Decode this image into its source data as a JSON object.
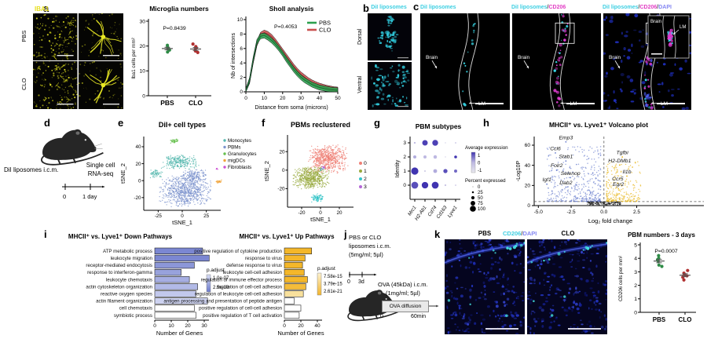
{
  "panels": {
    "a": {
      "label": "a",
      "stain": "IBA1",
      "row_labels": [
        "PBS",
        "CLO"
      ]
    },
    "b": {
      "label": "b",
      "title": "DiI liposomes",
      "row_labels": [
        "Dorsal",
        "Ventral"
      ]
    },
    "c": {
      "label": "c",
      "headers": [
        [
          [
            "DiI liposomes",
            "#3ecfe2"
          ]
        ],
        [
          [
            "DiI liposomes",
            "#3ecfe2"
          ],
          [
            "/",
            "#444444"
          ],
          [
            "CD206",
            "#e23ec4"
          ]
        ],
        [
          [
            "DiI liposomes",
            "#3ecfe2"
          ],
          [
            "/",
            "#444444"
          ],
          [
            "CD206",
            "#e23ec4"
          ],
          [
            "/",
            "#444444"
          ],
          [
            "DAPI",
            "#8486f2"
          ]
        ]
      ],
      "annotations": {
        "brain": "Brain",
        "lm": "LM"
      },
      "inset": {
        "brain": "Brain",
        "lm": "LM"
      }
    },
    "d": {
      "label": "d",
      "injection": "DiI liposomes i.c.m.",
      "method_line1": "Single cell",
      "method_line2": "RNA-seq",
      "timeline_start": "0",
      "timeline_end": "1 day"
    },
    "e": {
      "label": "e"
    },
    "f": {
      "label": "f"
    },
    "g": {
      "label": "g"
    },
    "h": {
      "label": "h"
    },
    "i": {
      "label": "i"
    },
    "j": {
      "label": "j",
      "treatment_line1": "PBS or CLO",
      "treatment_line2": "liposomes i.c.m.",
      "treatment_line3": "(5mg/ml; 5µl)",
      "timeline_start": "0",
      "timeline_end": "3d",
      "ova_line1": "OVA (45kDa) i.c.m.",
      "ova_line2": "(1mg/ml; 5µl)",
      "diffusion_box": "OVA diffusion",
      "diffusion_start": "0",
      "diffusion_end": "60min"
    },
    "k": {
      "label": "k",
      "col_labels": [
        "PBS",
        "CLO"
      ],
      "stain_parts": [
        [
          "CD206",
          "#3ecfe2"
        ],
        [
          "/",
          "#444444"
        ],
        [
          "DAPI",
          "#8486f2"
        ]
      ]
    }
  },
  "chart_data": [
    {
      "id": "microglia_numbers",
      "type": "scatter",
      "title": "Microglia numbers",
      "p_value": "P=0.8439",
      "ylabel": "Iba1 cells per mm²",
      "ylim": [
        0,
        30
      ],
      "yticks": [
        0,
        10,
        20,
        30
      ],
      "groups": [
        {
          "name": "PBS",
          "color": "#2e8b46",
          "values": [
            20.3,
            19.6,
            19.2,
            18.9,
            18.4,
            17.6
          ],
          "mean": 19.0,
          "sem": 0.5
        },
        {
          "name": "CLO",
          "color": "#b03030",
          "values": [
            20.8,
            19.8,
            19.3,
            18.7,
            18.0,
            17.4
          ],
          "mean": 18.8,
          "sem": 0.6
        }
      ]
    },
    {
      "id": "sholl",
      "type": "line",
      "title": "Sholl analysis",
      "p_value": "P=0.4053",
      "xlabel": "Distance from soma (microns)",
      "ylabel": "Nb of intersections",
      "xlim": [
        0,
        50
      ],
      "ylim": [
        0,
        10
      ],
      "xticks": [
        0,
        10,
        20,
        30,
        40,
        50
      ],
      "yticks": [
        0,
        2,
        4,
        6,
        8,
        10
      ],
      "x": [
        0,
        2,
        4,
        6,
        8,
        10,
        12,
        14,
        16,
        18,
        20,
        22,
        24,
        26,
        28,
        30,
        32,
        34,
        36,
        38,
        40,
        42,
        44,
        46,
        48,
        50
      ],
      "series": [
        {
          "name": "PBS",
          "color": "#2ba04d",
          "line": "#156a35",
          "band": 0.35,
          "values": [
            0.1,
            1.6,
            4.5,
            6.9,
            7.7,
            7.8,
            7.5,
            7.1,
            6.6,
            6.0,
            5.3,
            4.5,
            3.8,
            3.1,
            2.5,
            2.0,
            1.6,
            1.3,
            1.0,
            0.8,
            0.6,
            0.5,
            0.4,
            0.3,
            0.25,
            0.2
          ]
        },
        {
          "name": "CLO",
          "color": "#c9504e",
          "line": "#8d2f2f",
          "band": 0.35,
          "values": [
            0.1,
            1.5,
            4.3,
            6.7,
            7.9,
            8.2,
            8.0,
            7.6,
            7.0,
            6.3,
            5.6,
            4.9,
            4.2,
            3.5,
            2.9,
            2.4,
            2.0,
            1.6,
            1.3,
            1.05,
            0.85,
            0.7,
            0.55,
            0.45,
            0.35,
            0.3
          ]
        }
      ]
    },
    {
      "id": "dil_tsne",
      "type": "tsne",
      "title": "DiI+ cell types",
      "xlabel": "tSNE_1",
      "ylabel": "tSNE_2",
      "xlim": [
        -40,
        40
      ],
      "ylim": [
        -35,
        52
      ],
      "xticks": [
        -25,
        0,
        25
      ],
      "yticks": [
        -20,
        0,
        20,
        40
      ],
      "clusters": [
        {
          "name": "Monocytes",
          "color": "#57b8af",
          "blobs": [
            [
              -2,
              22,
              20,
              9,
              260
            ],
            [
              -27,
              8,
              7,
              5,
              60
            ]
          ]
        },
        {
          "name": "PBMs",
          "color": "#7e94ce",
          "blobs": [
            [
              3,
              -12,
              28,
              20,
              750
            ],
            [
              12,
              6,
              14,
              8,
              150
            ]
          ]
        },
        {
          "name": "Granulocytes",
          "color": "#66bf4e",
          "blobs": [
            [
              -8,
              47,
              5,
              3,
              45
            ]
          ]
        },
        {
          "name": "migDCs",
          "color": "#f0a43c",
          "blobs": [
            [
              38,
              -1,
              4,
              2,
              28
            ]
          ]
        },
        {
          "name": "Fibroblasts",
          "color": "#ce52d3",
          "blobs": [
            [
              36,
              14,
              2,
              1.5,
              7
            ]
          ]
        }
      ]
    },
    {
      "id": "pbm_tsne",
      "type": "tsne",
      "title": "PBMs reclustered",
      "xlabel": "tSNE_1",
      "ylabel": "tSNE_2",
      "xlim": [
        -35,
        35
      ],
      "ylim": [
        -40,
        38
      ],
      "xticks": [
        -20,
        0,
        20
      ],
      "yticks": [
        -20,
        0,
        20
      ],
      "clusters": [
        {
          "name": "0",
          "color": "#ef8076",
          "blobs": [
            [
              8,
              12,
              22,
              16,
              650
            ]
          ]
        },
        {
          "name": "1",
          "color": "#98a93e",
          "blobs": [
            [
              -10,
              -8,
              20,
              13,
              550
            ]
          ]
        },
        {
          "name": "2",
          "color": "#35c4c8",
          "blobs": [
            [
              -3,
              -30,
              8,
              5,
              90
            ],
            [
              1,
              1,
              3,
              2,
              10
            ]
          ]
        },
        {
          "name": "3",
          "color": "#b467d7",
          "blobs": [
            [
              3,
              3,
              3,
              2,
              12
            ]
          ]
        }
      ]
    },
    {
      "id": "pbm_subtypes",
      "type": "dotplot",
      "title": "PBM subtypes",
      "ylabel": "Identity",
      "genes": [
        "Mrc1",
        "H2-Ab1",
        "Cd74",
        "Cd163",
        "Lyve1"
      ],
      "rows": [
        {
          "identity": "3",
          "pct": [
            15,
            70,
            75,
            5,
            10
          ],
          "expr": [
            0.0,
            0.9,
            0.9,
            -0.5,
            -0.3
          ]
        },
        {
          "identity": "2",
          "pct": [
            35,
            35,
            40,
            5,
            30
          ],
          "expr": [
            0.1,
            0.0,
            0.0,
            -0.5,
            1.0
          ]
        },
        {
          "identity": "1",
          "pct": [
            95,
            15,
            45,
            50,
            35
          ],
          "expr": [
            1.0,
            -0.5,
            0.1,
            0.8,
            0.6
          ]
        },
        {
          "identity": "0",
          "pct": [
            90,
            85,
            90,
            15,
            10
          ],
          "expr": [
            0.8,
            1.0,
            1.0,
            -0.2,
            -0.4
          ]
        }
      ],
      "legend_expression": {
        "title": "Average expression",
        "ticks": [
          "1",
          "0",
          "-1"
        ]
      },
      "legend_percent": {
        "title": "Percent expressed",
        "ticks": [
          "0",
          "25",
          "50",
          "75",
          "100"
        ]
      }
    },
    {
      "id": "volcano",
      "type": "scatter",
      "title": "MHCII⁺ vs. Lyve1⁺ Volcano plot",
      "xlabel": "Log₂ fold change",
      "ylabel": "-Log10P",
      "xlim": [
        -5.3,
        4.5
      ],
      "ylim": [
        0,
        72
      ],
      "xticks": [
        -5.0,
        -2.5,
        0.0,
        2.5
      ],
      "yticks": [
        0,
        20,
        40,
        60
      ],
      "left_color": "#6d81cf",
      "right_color": "#e8b820",
      "ns_color": "#222222",
      "labels_left": [
        {
          "gene": "Emp3",
          "x": -2.9,
          "y": 66
        },
        {
          "gene": "Ccl6",
          "x": -3.7,
          "y": 55
        },
        {
          "gene": "Stab1",
          "x": -2.9,
          "y": 47
        },
        {
          "gene": "Folr2",
          "x": -3.6,
          "y": 38
        },
        {
          "gene": "Selenop",
          "x": -2.55,
          "y": 30.5
        },
        {
          "gene": "Igf1",
          "x": -4.35,
          "y": 24
        },
        {
          "gene": "Dab2",
          "x": -2.9,
          "y": 21
        }
      ],
      "labels_right": [
        {
          "gene": "Tgfbi",
          "x": 1.4,
          "y": 51
        },
        {
          "gene": "H2-DMb1",
          "x": 1.2,
          "y": 43
        },
        {
          "gene": "Il1b",
          "x": 1.75,
          "y": 32
        },
        {
          "gene": "Ccr5",
          "x": 1.05,
          "y": 25
        },
        {
          "gene": "Egr2",
          "x": 1.1,
          "y": 19.5
        }
      ]
    },
    {
      "id": "down_pathways",
      "type": "bar",
      "title": "MHCII⁺ vs. Lyve1⁺  Down Pathways",
      "xlabel": "Number of Genes",
      "xticks": [
        0,
        10,
        20,
        30
      ],
      "categories": [
        "ATP metabolic process",
        "leukocyte migration",
        "receptor-mediated endocytosis",
        "response to interferon-gamma",
        "leukocyte chemotaxis",
        "actin cytoskeleton organization",
        "reactive oxygen species",
        "actin filament organization",
        "cell chemotaxis",
        "symbiotic process"
      ],
      "values": [
        29,
        33,
        24,
        16,
        21,
        26,
        25,
        32,
        24,
        25
      ],
      "colors": [
        "#7b87d2",
        "#7b87d2",
        "#8c97d8",
        "#98a2dc",
        "#a6aee2",
        "#b2bae7",
        "#c2c8ec",
        "#cdd2f0",
        "#ffffff",
        "#ffffff"
      ],
      "legend": {
        "title": "p.adjust",
        "ticks": [
          "1.0e-07",
          "2.5e-08"
        ],
        "top_color": "#d9def5",
        "bottom_color": "#6b79cc"
      }
    },
    {
      "id": "up_pathways",
      "type": "bar",
      "title": "MHCII⁺ vs. Lyve1⁺ Up Pathways",
      "xlabel": "Number of Genes",
      "xticks": [
        0,
        20,
        40
      ],
      "categories": [
        "positive regulation of cytokine production",
        "response to virus",
        "defense response to virus",
        "leukocyte cell-cell adhesion",
        "regulation of immune effector process",
        "regulation of cell-cell adhesion",
        "regulation of leukocyte cell-cell adhesion",
        "antigen processing and presentation of peptide antigen",
        "positive regulation of cell-cell adhesion",
        "positive regulation of T cell activation"
      ],
      "values": [
        33,
        25,
        22,
        24,
        28,
        26,
        23,
        12,
        20,
        18
      ],
      "colors": [
        "#f4b72a",
        "#f4b72a",
        "#f4b72a",
        "#f4b72a",
        "#f4b72a",
        "#f4bc3a",
        "#f8e09c",
        "#ffffff",
        "#ffffff",
        "#ffffff"
      ],
      "legend": {
        "title": "p.adjust",
        "ticks": [
          "7.58e-15",
          "3.79e-15",
          "2.61e-21"
        ],
        "top_color": "#fdf2d0",
        "bottom_color": "#f2b42b"
      }
    },
    {
      "id": "pbm_numbers",
      "type": "scatter",
      "title": "PBM numbers - 3 days",
      "p_value": "P=0.0007",
      "ylabel": "CD206 cells per mm²",
      "ylim": [
        0,
        5
      ],
      "yticks": [
        0,
        1,
        2,
        3,
        4,
        5
      ],
      "groups": [
        {
          "name": "PBS",
          "color": "#2e8b46",
          "values": [
            4.2,
            4.0,
            3.9,
            3.8,
            3.5,
            3.4
          ],
          "mean": 3.8,
          "sem": 0.13
        },
        {
          "name": "CLO",
          "color": "#b03030",
          "values": [
            3.1,
            2.9,
            2.8,
            2.7,
            2.6,
            2.4
          ],
          "mean": 2.75,
          "sem": 0.11
        }
      ]
    }
  ]
}
